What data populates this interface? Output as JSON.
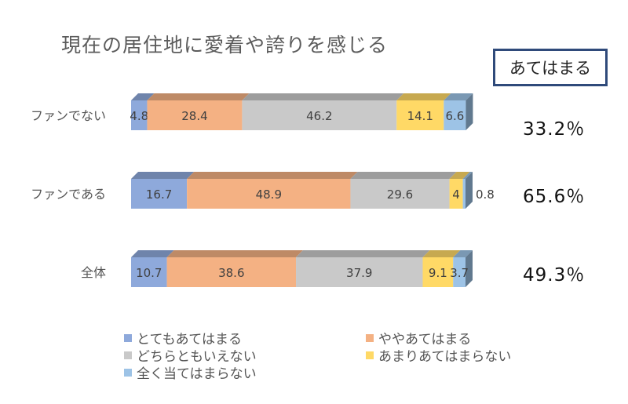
{
  "chart_data": {
    "type": "bar",
    "stacked": true,
    "orientation": "horizontal",
    "title": "現在の居住地に愛着や誇りを感じる",
    "categories": [
      "ファンでない",
      "ファンである",
      "全体"
    ],
    "series": [
      {
        "name": "とてもあてはまる",
        "color": "#8ea9db",
        "values": [
          4.8,
          16.7,
          10.7
        ]
      },
      {
        "name": "ややあてはまる",
        "color": "#f4b183",
        "values": [
          28.4,
          48.9,
          38.6
        ]
      },
      {
        "name": "どちらともいえない",
        "color": "#c9c9c9",
        "values": [
          46.2,
          29.6,
          37.9
        ]
      },
      {
        "name": "あまりあてはまらない",
        "color": "#ffd966",
        "values": [
          14.1,
          4,
          9.1
        ]
      },
      {
        "name": "全く当てはまらない",
        "color": "#9dc3e6",
        "values": [
          6.6,
          0.8,
          3.7
        ]
      }
    ],
    "labels": [
      [
        "4.8",
        "28.4",
        "46.2",
        "14.1",
        "6.6"
      ],
      [
        "16.7",
        "48.9",
        "29.6",
        "4",
        "0.8"
      ],
      [
        "10.7",
        "38.6",
        "37.9",
        "9.1",
        "3.7"
      ]
    ],
    "xlim": [
      0,
      100
    ],
    "legend_position": "bottom",
    "grid": false
  },
  "summary": {
    "header": "あてはまる",
    "values": [
      "33.2％",
      "65.6％",
      "49.3％"
    ]
  }
}
